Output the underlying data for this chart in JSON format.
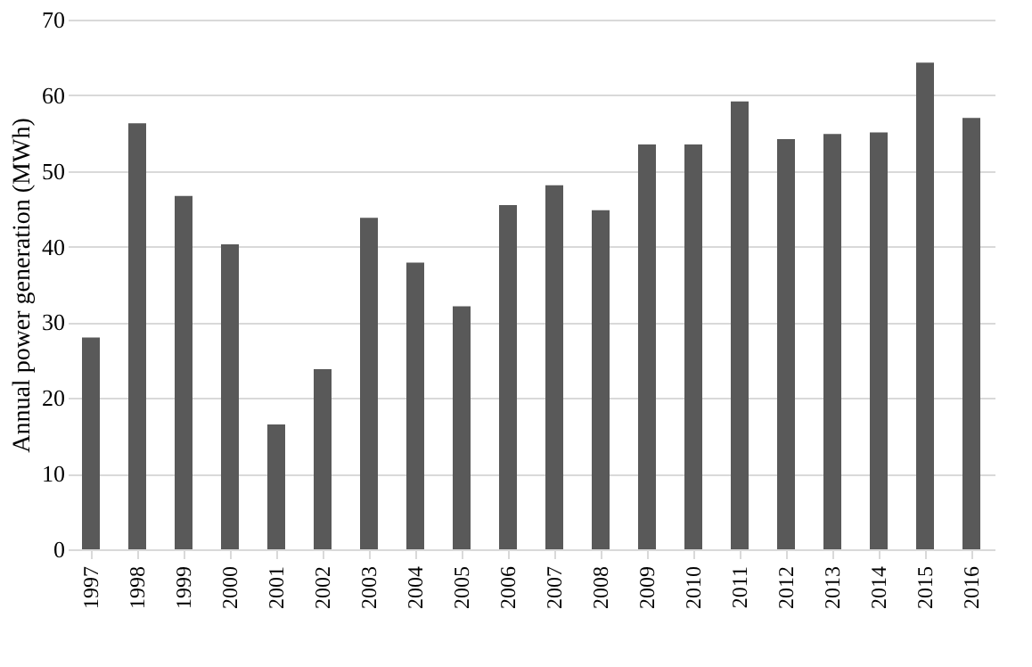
{
  "chart_data": {
    "type": "bar",
    "ylabel": "Annual power generation (MWh)",
    "categories": [
      "1997",
      "1998",
      "1999",
      "2000",
      "2001",
      "2002",
      "2003",
      "2004",
      "2005",
      "2006",
      "2007",
      "2008",
      "2009",
      "2010",
      "2011",
      "2012",
      "2013",
      "2014",
      "2015",
      "2016"
    ],
    "values": [
      28.0,
      56.3,
      46.7,
      40.3,
      16.5,
      23.8,
      43.8,
      37.9,
      32.1,
      45.5,
      48.1,
      44.8,
      53.5,
      53.5,
      59.2,
      54.2,
      54.9,
      55.1,
      64.3,
      57.0
    ],
    "color": "#595959",
    "ylim": [
      0,
      70
    ],
    "yticks": [
      0,
      10,
      20,
      30,
      40,
      50,
      60,
      70
    ],
    "grid": "y"
  }
}
